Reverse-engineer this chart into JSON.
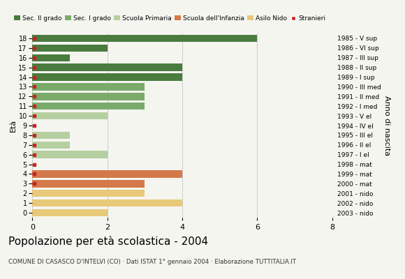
{
  "ages": [
    18,
    17,
    16,
    15,
    14,
    13,
    12,
    11,
    10,
    9,
    8,
    7,
    6,
    5,
    4,
    3,
    2,
    1,
    0
  ],
  "anno_nascita": [
    "1985 - V sup",
    "1986 - VI sup",
    "1987 - III sup",
    "1988 - II sup",
    "1989 - I sup",
    "1990 - III med",
    "1991 - II med",
    "1992 - I med",
    "1993 - V el",
    "1994 - IV el",
    "1995 - III el",
    "1996 - II el",
    "1997 - I el",
    "1998 - mat",
    "1999 - mat",
    "2000 - mat",
    "2001 - nido",
    "2002 - nido",
    "2003 - nido"
  ],
  "bar_values": [
    6,
    2,
    1,
    4,
    4,
    3,
    3,
    3,
    2,
    0,
    1,
    1,
    2,
    0,
    4,
    3,
    3,
    4,
    2
  ],
  "bar_colors": [
    "#4a7c3f",
    "#4a7c3f",
    "#4a7c3f",
    "#4a7c3f",
    "#4a7c3f",
    "#7aab6a",
    "#7aab6a",
    "#7aab6a",
    "#b5cfa0",
    "#b5cfa0",
    "#b5cfa0",
    "#b5cfa0",
    "#b5cfa0",
    "#b5cfa0",
    "#d4794a",
    "#d4794a",
    "#e8c97a",
    "#e8c97a",
    "#e8c97a"
  ],
  "stranieri_marker": [
    1,
    1,
    1,
    1,
    1,
    1,
    1,
    1,
    1,
    1,
    1,
    1,
    1,
    1,
    1,
    1,
    0,
    0,
    0
  ],
  "legend_labels": [
    "Sec. II grado",
    "Sec. I grado",
    "Scuola Primaria",
    "Scuola dell'Infanzia",
    "Asilo Nido",
    "Stranieri"
  ],
  "legend_colors": [
    "#4a7c3f",
    "#7aab6a",
    "#b5cfa0",
    "#d4794a",
    "#e8c97a",
    "#cc2222"
  ],
  "title": "Popolazione per età scolastica - 2004",
  "subtitle": "COMUNE DI CASASCO D'INTELVI (CO) · Dati ISTAT 1° gennaio 2004 · Elaborazione TUTTITALIA.IT",
  "xlim": [
    0,
    8
  ],
  "xticks": [
    0,
    2,
    4,
    6,
    8
  ],
  "ylabel_left": "Età",
  "ylabel_right": "Anno di nascita",
  "bg_color": "#f5f5f0",
  "bar_height": 0.75
}
